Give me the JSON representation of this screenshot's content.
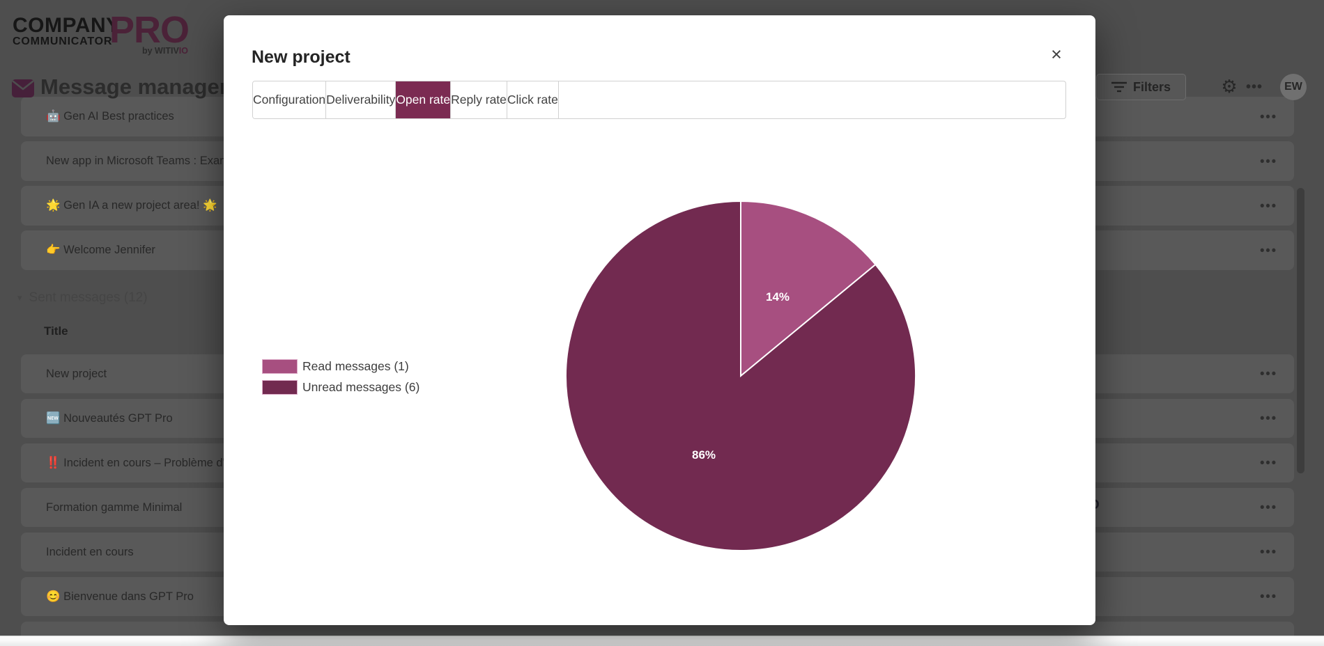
{
  "backdrop": {
    "logo": {
      "line1": "COMPANY",
      "line2": "COMMUNICATOR",
      "pro": "PRO",
      "byline_prefix": "by WITIV",
      "byline_suffix": "IO"
    },
    "header": {
      "title": "Message management",
      "filters_label": "Filters",
      "gear_icon": "⚙",
      "more_icon": "•••",
      "avatar_initials": "EW"
    },
    "recent_rows": [
      {
        "label": "🤖 Gen AI Best practices"
      },
      {
        "label": "New app in Microsoft Teams : ExamplePro"
      },
      {
        "label": "🌟 Gen IA a new project area! 🌟"
      },
      {
        "label": "👉 Welcome Jennifer"
      }
    ],
    "sent_section": {
      "caret": "▾",
      "label": "Sent messages (12)",
      "column_title": "Title",
      "rows": [
        {
          "label": "New project"
        },
        {
          "label": "🆕 Nouveautés GPT Pro"
        },
        {
          "label": "‼️ Incident en cours – Problème d'accès"
        },
        {
          "label": "Formation gamme Minimal"
        },
        {
          "label": "Incident en cours"
        },
        {
          "label": "😊 Bienvenue dans GPT Pro"
        }
      ]
    },
    "row_more_label": "•••",
    "clipped_text_fragment": "D"
  },
  "modal": {
    "title": "New project",
    "close_icon": "×",
    "tabs": [
      {
        "label": "Configuration",
        "selected": false
      },
      {
        "label": "Deliverability",
        "selected": false
      },
      {
        "label": "Open rate",
        "selected": true
      },
      {
        "label": "Reply rate",
        "selected": false
      },
      {
        "label": "Click rate",
        "selected": false
      }
    ],
    "legend": [
      {
        "label": "Read messages (1)",
        "color": "#A74F80"
      },
      {
        "label": "Unread messages (6)",
        "color": "#722A50"
      }
    ]
  },
  "chart_data": {
    "type": "pie",
    "title": "Open rate",
    "categories": [
      "Read messages",
      "Unread messages"
    ],
    "values": [
      1,
      6
    ],
    "percent_labels": [
      "14%",
      "86%"
    ],
    "colors": [
      "#A74F80",
      "#722A50"
    ],
    "legend_position": "left",
    "start_angle_deg": 0,
    "direction": "clockwise"
  },
  "colors": {
    "brand_accent": "#7B2B52",
    "modal_bg": "#ffffff",
    "backdrop_dim": "#4e4e4e"
  }
}
